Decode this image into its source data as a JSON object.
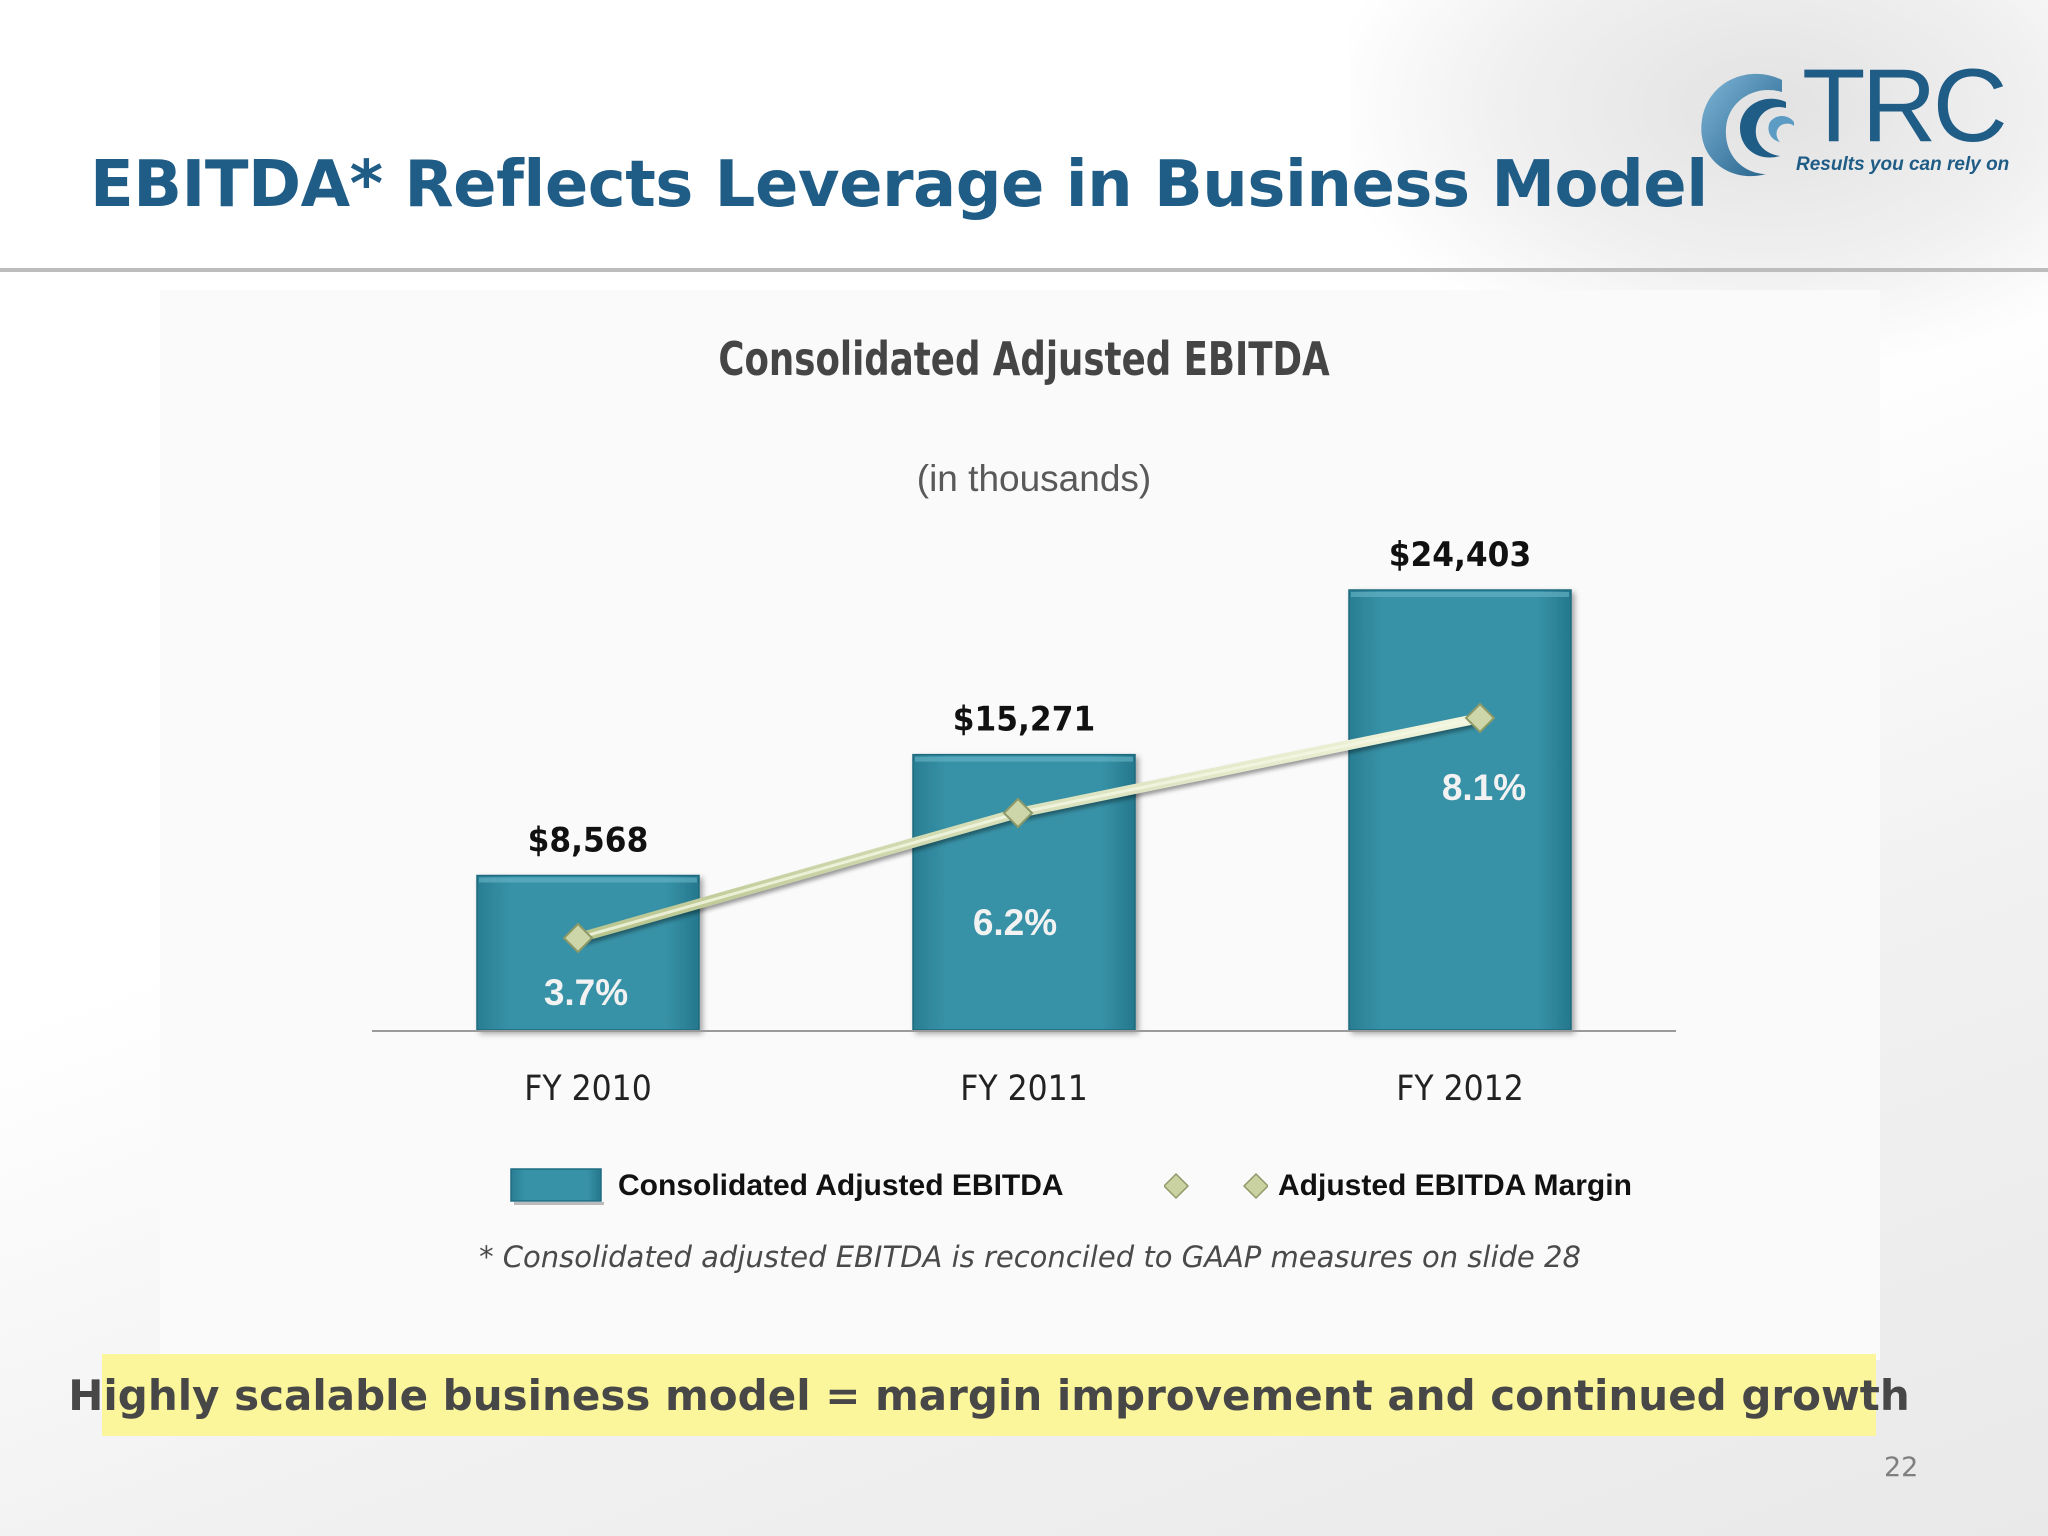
{
  "slide": {
    "title": "EBITDA* Reflects Leverage in Business Model",
    "logo": {
      "name": "TRC",
      "tagline": "Results you can rely on"
    },
    "footnote": "* Consolidated adjusted EBITDA is reconciled to GAAP measures on slide 28",
    "callout": "Highly scalable business model = margin improvement and continued growth",
    "page_number": "22"
  },
  "chart_data": {
    "type": "bar",
    "title": "Consolidated Adjusted EBITDA",
    "subtitle": "(in thousands)",
    "categories": [
      "FY 2010",
      "FY 2011",
      "FY 2012"
    ],
    "series": [
      {
        "name": "Consolidated Adjusted EBITDA",
        "kind": "bar",
        "values": [
          8568,
          15271,
          24403
        ],
        "labels": [
          "$8,568",
          "$15,271",
          "$24,403"
        ],
        "color": "#338ea3"
      },
      {
        "name": "Adjusted EBITDA Margin",
        "kind": "line",
        "values": [
          3.7,
          6.2,
          8.1
        ],
        "labels": [
          "3.7%",
          "6.2%",
          "8.1%"
        ],
        "color": "#d6dfb4"
      }
    ],
    "legend_position": "bottom",
    "grid": false
  }
}
